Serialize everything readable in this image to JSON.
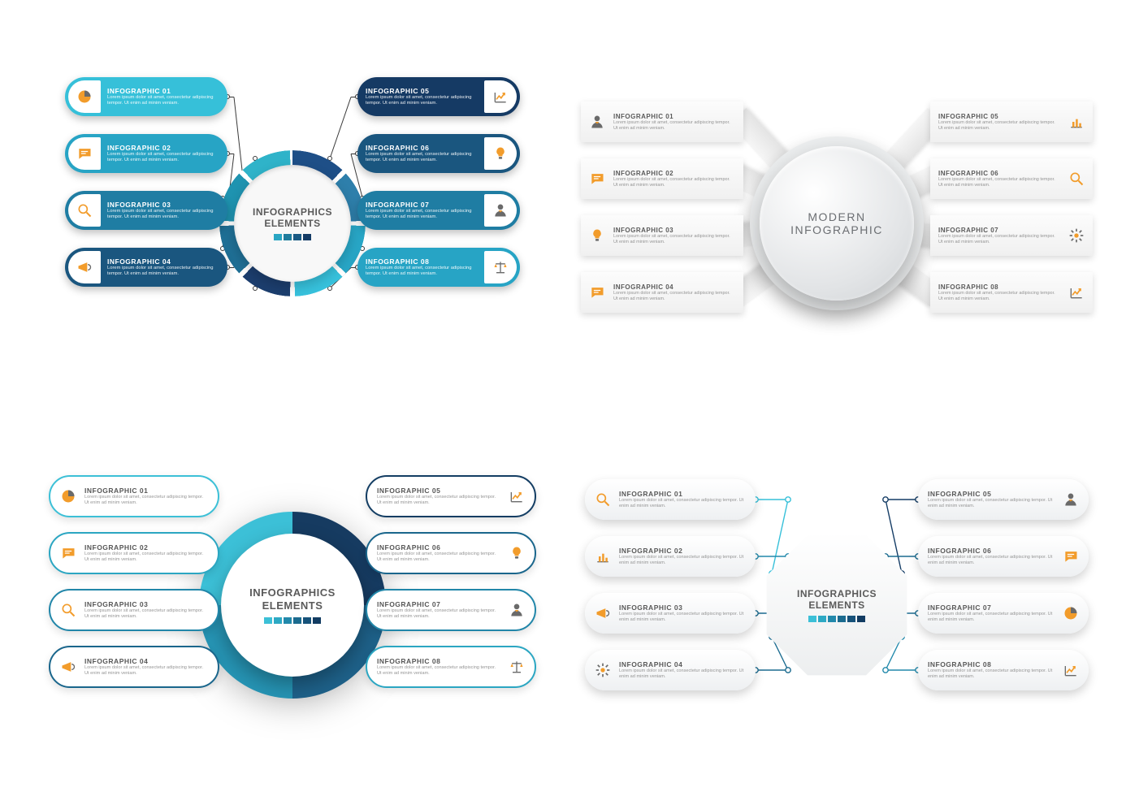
{
  "background_color": "#ffffff",
  "accent_orange": "#f29c2b",
  "text_grey": "#6a6a6a",
  "common": {
    "item_title_prefix": "INFOGRAPHIC ",
    "item_body": "Lorem ipsum dolor sit amet, consectetur adipiscing tempor. Ut enim ad minim veniam.",
    "center_title_l1": "INFOGRAPHICS",
    "center_title_l2": "ELEMENTS"
  },
  "q1": {
    "type": "radial-infographic",
    "center_title_l1": "INFOGRAPHICS",
    "center_title_l2": "ELEMENTS",
    "segment_colors": [
      "#1e4f87",
      "#2e7fab",
      "#28a6c6",
      "#37c2dd",
      "#1c3e6e",
      "#1f6f95",
      "#1f93b0",
      "#2fb3c9"
    ],
    "swatch_colors": [
      "#2aa6c3",
      "#1f7c9d",
      "#1a5a84",
      "#153c66"
    ],
    "items": [
      {
        "n": "01",
        "icon": "pie",
        "color": "#36c0d9"
      },
      {
        "n": "02",
        "icon": "chat",
        "color": "#27a4c5"
      },
      {
        "n": "03",
        "icon": "search",
        "color": "#1f7da3"
      },
      {
        "n": "04",
        "icon": "megaphone",
        "color": "#1a567f"
      },
      {
        "n": "05",
        "icon": "growth",
        "color": "#153a64"
      },
      {
        "n": "06",
        "icon": "bulb",
        "color": "#1a567f"
      },
      {
        "n": "07",
        "icon": "person",
        "color": "#1f7da3"
      },
      {
        "n": "08",
        "icon": "scale",
        "color": "#27a4c5"
      }
    ]
  },
  "q2": {
    "type": "radial-infographic",
    "center_title_l1": "MODERN",
    "center_title_l2": "INFOGRAPHIC",
    "card_bg": "#f3f3f3",
    "items": [
      {
        "n": "01",
        "icon": "person"
      },
      {
        "n": "02",
        "icon": "chat"
      },
      {
        "n": "03",
        "icon": "bulb"
      },
      {
        "n": "04",
        "icon": "chat"
      },
      {
        "n": "05",
        "icon": "bars"
      },
      {
        "n": "06",
        "icon": "search"
      },
      {
        "n": "07",
        "icon": "gear"
      },
      {
        "n": "08",
        "icon": "growth"
      }
    ]
  },
  "q3": {
    "type": "radial-infographic",
    "center_title_l1": "INFOGRAPHICS",
    "center_title_l2": "ELEMENTS",
    "ring_colors": [
      "#163b61",
      "#1e6189",
      "#2694b4",
      "#3cc0d7"
    ],
    "swatch_colors": [
      "#3cc0d7",
      "#2da9c4",
      "#2289ab",
      "#1b6b8f",
      "#16527a",
      "#123c62"
    ],
    "border_colors": [
      "#3cc0d7",
      "#2ba6c2",
      "#2186a9",
      "#1a668c",
      "#133d63",
      "#1a668c",
      "#2186a9",
      "#2ba6c2"
    ],
    "items": [
      {
        "n": "01",
        "icon": "pie"
      },
      {
        "n": "02",
        "icon": "chat"
      },
      {
        "n": "03",
        "icon": "search"
      },
      {
        "n": "04",
        "icon": "megaphone"
      },
      {
        "n": "05",
        "icon": "growth"
      },
      {
        "n": "06",
        "icon": "bulb"
      },
      {
        "n": "07",
        "icon": "person"
      },
      {
        "n": "08",
        "icon": "scale"
      }
    ]
  },
  "q4": {
    "type": "radial-infographic",
    "center_title_l1": "INFOGRAPHICS",
    "center_title_l2": "ELEMENTS",
    "swatch_colors": [
      "#3cc0d7",
      "#2da9c4",
      "#2289ab",
      "#1b6b8f",
      "#16527a",
      "#123c62"
    ],
    "connector_colors": [
      "#36c0d9",
      "#2289ab",
      "#1b6b8f",
      "#1b6b8f",
      "#153d66",
      "#1b6b8f",
      "#1b6b8f",
      "#2289ab"
    ],
    "items": [
      {
        "n": "01",
        "icon": "search"
      },
      {
        "n": "02",
        "icon": "bars"
      },
      {
        "n": "03",
        "icon": "megaphone"
      },
      {
        "n": "04",
        "icon": "gear"
      },
      {
        "n": "05",
        "icon": "person"
      },
      {
        "n": "06",
        "icon": "chat"
      },
      {
        "n": "07",
        "icon": "pie"
      },
      {
        "n": "08",
        "icon": "growth"
      }
    ]
  }
}
